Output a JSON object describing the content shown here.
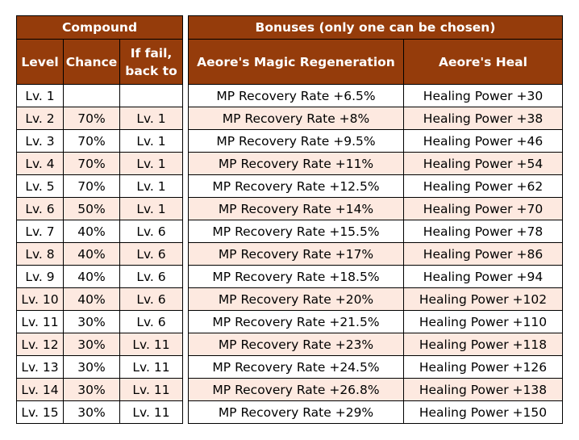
{
  "compound": {
    "title": "Compound",
    "col_level": "Level",
    "col_chance": "Chance",
    "col_fail_line1": "If fail,",
    "col_fail_line2": "back to",
    "rows": [
      {
        "level": "Lv. 1",
        "chance": "",
        "fail": ""
      },
      {
        "level": "Lv. 2",
        "chance": "70%",
        "fail": "Lv. 1"
      },
      {
        "level": "Lv. 3",
        "chance": "70%",
        "fail": "Lv. 1"
      },
      {
        "level": "Lv. 4",
        "chance": "70%",
        "fail": "Lv. 1"
      },
      {
        "level": "Lv. 5",
        "chance": "70%",
        "fail": "Lv. 1"
      },
      {
        "level": "Lv. 6",
        "chance": "50%",
        "fail": "Lv. 1"
      },
      {
        "level": "Lv. 7",
        "chance": "40%",
        "fail": "Lv. 6"
      },
      {
        "level": "Lv. 8",
        "chance": "40%",
        "fail": "Lv. 6"
      },
      {
        "level": "Lv. 9",
        "chance": "40%",
        "fail": "Lv. 6"
      },
      {
        "level": "Lv. 10",
        "chance": "40%",
        "fail": "Lv. 6"
      },
      {
        "level": "Lv. 11",
        "chance": "30%",
        "fail": "Lv. 6"
      },
      {
        "level": "Lv. 12",
        "chance": "30%",
        "fail": "Lv. 11"
      },
      {
        "level": "Lv. 13",
        "chance": "30%",
        "fail": "Lv. 11"
      },
      {
        "level": "Lv. 14",
        "chance": "30%",
        "fail": "Lv. 11"
      },
      {
        "level": "Lv. 15",
        "chance": "30%",
        "fail": "Lv. 11"
      }
    ]
  },
  "bonuses": {
    "title": "Bonuses (only one can be chosen)",
    "col_magic": "Aeore's Magic Regeneration",
    "col_heal": "Aeore's Heal",
    "rows": [
      {
        "magic": "MP Recovery Rate +6.5%",
        "heal": "Healing Power +30"
      },
      {
        "magic": "MP Recovery Rate +8%",
        "heal": "Healing Power +38"
      },
      {
        "magic": "MP Recovery Rate +9.5%",
        "heal": "Healing Power +46"
      },
      {
        "magic": "MP Recovery Rate +11%",
        "heal": "Healing Power +54"
      },
      {
        "magic": "MP Recovery Rate +12.5%",
        "heal": "Healing Power +62"
      },
      {
        "magic": "MP Recovery Rate +14%",
        "heal": "Healing Power +70"
      },
      {
        "magic": "MP Recovery Rate +15.5%",
        "heal": "Healing Power +78"
      },
      {
        "magic": "MP Recovery Rate +17%",
        "heal": "Healing Power +86"
      },
      {
        "magic": "MP Recovery Rate +18.5%",
        "heal": "Healing Power +94"
      },
      {
        "magic": "MP Recovery Rate +20%",
        "heal": "Healing Power +102"
      },
      {
        "magic": "MP Recovery Rate +21.5%",
        "heal": "Healing Power +110"
      },
      {
        "magic": "MP Recovery Rate +23%",
        "heal": "Healing Power +118"
      },
      {
        "magic": "MP Recovery Rate +24.5%",
        "heal": "Healing Power +126"
      },
      {
        "magic": "MP Recovery Rate +26.8%",
        "heal": "Healing Power +138"
      },
      {
        "magic": "MP Recovery Rate +29%",
        "heal": "Healing Power +150"
      }
    ]
  },
  "colors": {
    "header_bg": "#953c0b",
    "header_text": "#ffffff",
    "row_alt_bg": "#fde9e0",
    "row_bg": "#ffffff",
    "border": "#000000"
  }
}
